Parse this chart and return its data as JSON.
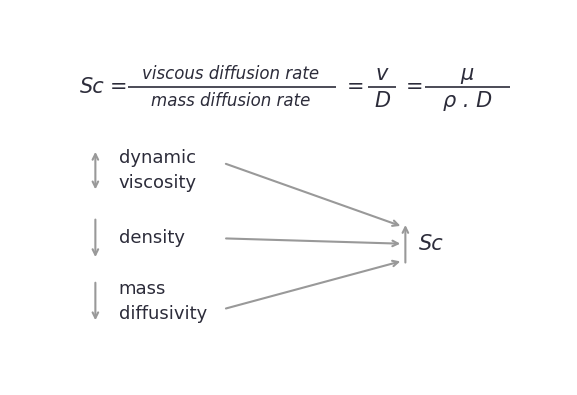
{
  "bg_color": "#ffffff",
  "text_color": "#2c2c3a",
  "arrow_color": "#999999",
  "label_dynamic": "dynamic\nviscosity",
  "label_density": "density",
  "label_mass": "mass\ndiffusivity",
  "figsize": [
    5.77,
    3.95
  ],
  "dpi": 100
}
